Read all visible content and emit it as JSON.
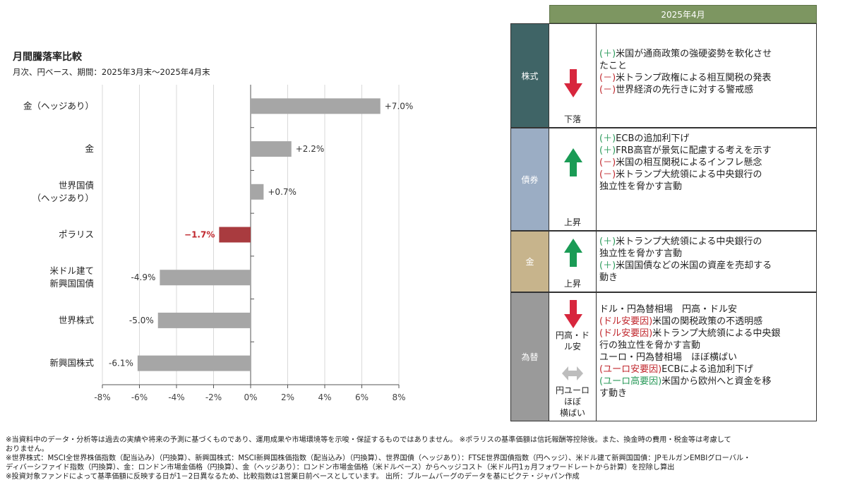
{
  "chart_data": {
    "type": "bar",
    "orientation": "horizontal",
    "title": "月間騰落率比較",
    "subtitle": "月次、円ベース、期間：2025年3月末～2025年4月末",
    "categories": [
      "金（ヘッジあり）",
      "金",
      "世界国債\n（ヘッジあり）",
      "ポラリス",
      "米ドル建て\n新興国国債",
      "世界株式",
      "新興国株式"
    ],
    "values": [
      7.0,
      2.2,
      0.7,
      -1.7,
      -4.9,
      -5.0,
      -6.1
    ],
    "value_labels": [
      "+7.0%",
      "+2.2%",
      "+0.7%",
      "−1.7%",
      "-4.9%",
      "-5.0%",
      "-6.1%"
    ],
    "highlight": "ポラリス",
    "xlim": [
      -8,
      8
    ],
    "xticks": [
      "-8%",
      "-6%",
      "-4%",
      "-2%",
      "0%",
      "2%",
      "4%",
      "6%",
      "8%"
    ],
    "grid": true,
    "colors": {
      "bar": "#a6a6a6",
      "highlight": "#a93b3f",
      "grid": "#d9d9d9"
    }
  },
  "table": {
    "header": "2025年4月",
    "rows": [
      {
        "category": "株式",
        "color": "#3f6466",
        "arrow": "down",
        "direction": "下落",
        "lines": [
          {
            "sign": "(＋)",
            "tone": "pos",
            "text": "米国が通商政策の強硬姿勢を軟化させ"
          },
          {
            "sign": "",
            "tone": "",
            "text": "たこと"
          },
          {
            "sign": "(－)",
            "tone": "neg",
            "text": "米トランプ政権による相互関税の発表"
          },
          {
            "sign": "(－)",
            "tone": "neg",
            "text": "世界経済の先行きに対する警戒感"
          }
        ]
      },
      {
        "category": "債券",
        "color": "#9badc4",
        "arrow": "up",
        "direction": "上昇",
        "lines": [
          {
            "sign": "(＋)",
            "tone": "pos",
            "text": "ECBの追加利下げ"
          },
          {
            "sign": "(＋)",
            "tone": "pos",
            "text": "FRB高官が景気に配慮する考えを示す"
          },
          {
            "sign": "(－)",
            "tone": "neg",
            "text": "米国の相互関税によるインフレ懸念"
          },
          {
            "sign": "(－)",
            "tone": "neg",
            "text": "米トランプ大統領による中央銀行の"
          },
          {
            "sign": "",
            "tone": "",
            "text": "独立性を脅かす言動"
          }
        ]
      },
      {
        "category": "金",
        "color": "#c7b48c",
        "arrow": "up",
        "direction": "上昇",
        "lines": [
          {
            "sign": "(＋)",
            "tone": "pos",
            "text": "米トランプ大統領による中央銀行の"
          },
          {
            "sign": "",
            "tone": "",
            "text": "独立性を脅かす言動"
          },
          {
            "sign": "(＋)",
            "tone": "pos",
            "text": "米国国債などの米国の資産を売却する"
          },
          {
            "sign": "",
            "tone": "",
            "text": "動き"
          }
        ]
      },
      {
        "category": "為替",
        "color": "#9a9a9a",
        "arrow": "down",
        "direction": "円高・ド\nル安",
        "arrow2": "flat",
        "direction2": "円ユーロ\nほぼ\n横ばい",
        "lines": [
          {
            "sign": "",
            "tone": "",
            "text": "ドル・円為替相場　円高・ドル安"
          },
          {
            "sign": "(ドル安要因)",
            "tone": "neg",
            "text": "米国の関税政策の不透明感"
          },
          {
            "sign": "(ドル安要因)",
            "tone": "neg",
            "text": "米トランプ大統領による中央銀"
          },
          {
            "sign": "",
            "tone": "",
            "text": "行の独立性を脅かす言動"
          },
          {
            "sign": "",
            "tone": "",
            "text": "ユーロ・円為替相場　ほぼ横ばい"
          },
          {
            "sign": "(ユーロ安要因)",
            "tone": "neg",
            "text": "ECBによる追加利下げ"
          },
          {
            "sign": "(ユーロ高要因)",
            "tone": "pos",
            "text": "米国から欧州へと資金を移"
          },
          {
            "sign": "",
            "tone": "",
            "text": "す動き"
          }
        ]
      }
    ]
  },
  "footnotes": [
    "※当資料中のデータ・分析等は過去の実績や将来の予測に基づくものであり、運用成果や市場環境等を示唆・保証するものではありません。 ※ポラリスの基準価額は信託報酬等控除後。また、換金時の費用・税金等は考慮して",
    "おりません。",
    "※世界株式：MSCI全世界株価指数（配当込み）（円換算）、新興国株式：MSCI新興国株価指数（配当込み）（円換算）、世界国債（ヘッジあり）：FTSE世界国債指数（円ヘッジ）、米ドル建て新興国国債：JPモルガンEMBIグローバル・",
    "ディバーシファイド指数（円換算）、金：ロンドン市場金価格（円換算）、金（ヘッジあり）：ロンドン市場金価格（米ドルベース）からヘッジコスト（米ドル円1ヵ月フォワードレートから計算）を控除し算出",
    "※投資対象ファンドによって基準価額に反映する日が1－2日異なるため、比較指数は1営業日前ベースとしています。 出所：ブルームバーグのデータを基にピクテ・ジャパン作成"
  ]
}
